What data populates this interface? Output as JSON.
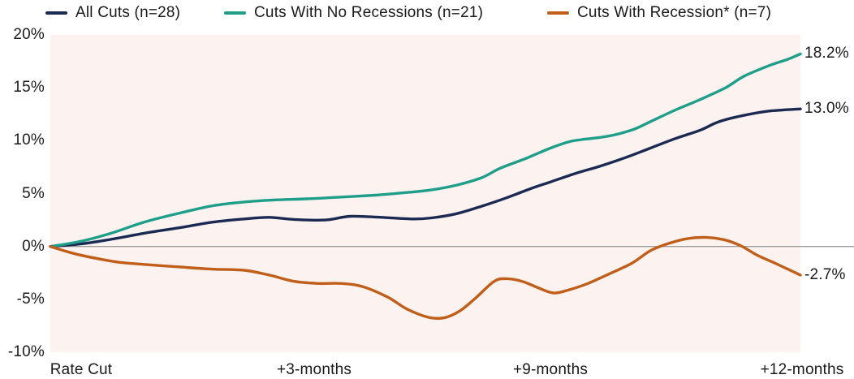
{
  "legend": {
    "items": [
      {
        "label": "All Cuts (n=28)",
        "color": "#1b2a52"
      },
      {
        "label": "Cuts With No Recessions (n=21)",
        "color": "#1f9e8a"
      },
      {
        "label": "Cuts With Recession* (n=7)",
        "color": "#c05e1a"
      }
    ]
  },
  "chart_data": {
    "type": "line",
    "title": "",
    "xlabel": "",
    "ylabel": "",
    "xlim": [
      0,
      12
    ],
    "ylim": [
      -10,
      20
    ],
    "grid": false,
    "zero_line": true,
    "zero_line_color": "#9b9b9b",
    "plot_bg": "#fcf3f0",
    "legend_position": "top",
    "yticks": [
      {
        "label": "20%",
        "value": 20
      },
      {
        "label": "15%",
        "value": 15
      },
      {
        "label": "10%",
        "value": 10
      },
      {
        "label": "5%",
        "value": 5
      },
      {
        "label": "0%",
        "value": 0
      },
      {
        "label": "-5%",
        "value": -5
      },
      {
        "label": "-10%",
        "value": -10
      }
    ],
    "xticks": [
      {
        "label": "Rate Cut"
      },
      {
        "label": "+3-months"
      },
      {
        "label": "+9-months"
      },
      {
        "label": "+12-months"
      }
    ],
    "series": [
      {
        "name": "All Cuts (n=28)",
        "color": "#1b2a52",
        "end_label": "13.0%",
        "points": [
          [
            0,
            0
          ],
          [
            0.5,
            0.25
          ],
          [
            1,
            0.7
          ],
          [
            1.5,
            1.25
          ],
          [
            2.1,
            1.8
          ],
          [
            2.6,
            2.3
          ],
          [
            3.1,
            2.6
          ],
          [
            3.5,
            2.75
          ],
          [
            3.9,
            2.55
          ],
          [
            4.4,
            2.5
          ],
          [
            4.8,
            2.85
          ],
          [
            5.3,
            2.75
          ],
          [
            5.8,
            2.6
          ],
          [
            6.1,
            2.7
          ],
          [
            6.5,
            3.1
          ],
          [
            6.9,
            3.8
          ],
          [
            7.3,
            4.6
          ],
          [
            7.7,
            5.5
          ],
          [
            8,
            6.1
          ],
          [
            8.4,
            6.9
          ],
          [
            8.8,
            7.6
          ],
          [
            9.2,
            8.4
          ],
          [
            9.6,
            9.3
          ],
          [
            10,
            10.2
          ],
          [
            10.4,
            11
          ],
          [
            10.7,
            11.8
          ],
          [
            11.1,
            12.4
          ],
          [
            11.5,
            12.8
          ],
          [
            12,
            13
          ]
        ]
      },
      {
        "name": "Cuts With No Recessions (n=21)",
        "color": "#1f9e8a",
        "end_label": "18.2%",
        "points": [
          [
            0,
            0
          ],
          [
            0.5,
            0.5
          ],
          [
            1,
            1.3
          ],
          [
            1.5,
            2.3
          ],
          [
            2.1,
            3.2
          ],
          [
            2.6,
            3.85
          ],
          [
            3.1,
            4.2
          ],
          [
            3.6,
            4.4
          ],
          [
            4.1,
            4.5
          ],
          [
            4.6,
            4.65
          ],
          [
            5.2,
            4.85
          ],
          [
            5.7,
            5.1
          ],
          [
            6.1,
            5.35
          ],
          [
            6.5,
            5.8
          ],
          [
            6.9,
            6.5
          ],
          [
            7.2,
            7.4
          ],
          [
            7.6,
            8.3
          ],
          [
            8,
            9.3
          ],
          [
            8.3,
            9.9
          ],
          [
            8.5,
            10.1
          ],
          [
            8.9,
            10.4
          ],
          [
            9.3,
            11
          ],
          [
            9.6,
            11.8
          ],
          [
            10,
            12.9
          ],
          [
            10.4,
            13.9
          ],
          [
            10.8,
            15
          ],
          [
            11.1,
            16.1
          ],
          [
            11.5,
            17.1
          ],
          [
            11.8,
            17.7
          ],
          [
            12,
            18.2
          ]
        ]
      },
      {
        "name": "Cuts With Recession* (n=7)",
        "color": "#c05e1a",
        "end_label": "-2.7%",
        "points": [
          [
            0,
            0
          ],
          [
            0.4,
            -0.7
          ],
          [
            0.8,
            -1.2
          ],
          [
            1.1,
            -1.5
          ],
          [
            1.5,
            -1.7
          ],
          [
            2.1,
            -1.95
          ],
          [
            2.6,
            -2.15
          ],
          [
            3.1,
            -2.25
          ],
          [
            3.5,
            -2.7
          ],
          [
            3.9,
            -3.3
          ],
          [
            4.3,
            -3.5
          ],
          [
            4.65,
            -3.5
          ],
          [
            5,
            -3.8
          ],
          [
            5.4,
            -4.8
          ],
          [
            5.7,
            -5.9
          ],
          [
            6.05,
            -6.7
          ],
          [
            6.3,
            -6.75
          ],
          [
            6.55,
            -6.1
          ],
          [
            6.8,
            -4.9
          ],
          [
            7.1,
            -3.3
          ],
          [
            7.3,
            -3.05
          ],
          [
            7.55,
            -3.3
          ],
          [
            7.8,
            -3.9
          ],
          [
            8.05,
            -4.4
          ],
          [
            8.3,
            -4.1
          ],
          [
            8.6,
            -3.5
          ],
          [
            8.9,
            -2.7
          ],
          [
            9.3,
            -1.6
          ],
          [
            9.6,
            -0.4
          ],
          [
            9.9,
            0.3
          ],
          [
            10.2,
            0.75
          ],
          [
            10.5,
            0.85
          ],
          [
            10.8,
            0.6
          ],
          [
            11.05,
            0.05
          ],
          [
            11.3,
            -0.8
          ],
          [
            11.6,
            -1.6
          ],
          [
            11.8,
            -2.15
          ],
          [
            12,
            -2.7
          ]
        ]
      }
    ]
  }
}
